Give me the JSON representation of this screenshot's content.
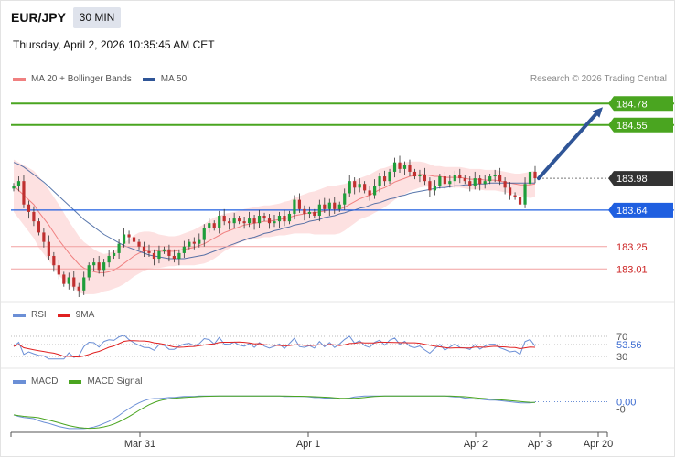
{
  "header": {
    "pair": "EUR/JPY",
    "timeframe": "30 MIN",
    "datetime": "Thursday, April 2, 2026 10:35:45 AM CET",
    "credit": "Research © 2026 Trading Central"
  },
  "legend": {
    "main": [
      {
        "label": "MA 20 + Bollinger Bands",
        "color": "#f08080"
      },
      {
        "label": "MA 50",
        "color": "#2f5597"
      }
    ],
    "rsi": [
      {
        "label": "RSI",
        "color": "#6b8fd6"
      },
      {
        "label": "9MA",
        "color": "#e02020"
      }
    ],
    "macd": [
      {
        "label": "MACD",
        "color": "#6b8fd6"
      },
      {
        "label": "MACD Signal",
        "color": "#4aa520"
      }
    ]
  },
  "colors": {
    "up": "#1e9e3a",
    "down": "#c03030",
    "target": "#4aa520",
    "pivot": "#1f5fe0",
    "support": "#e06060",
    "current": "#333333",
    "arrow": "#2f5597"
  },
  "chart_data": {
    "type": "candlestick",
    "x_ticks": [
      "Mar 31",
      "Apr 1",
      "Apr 2",
      "Apr 3",
      "Apr 20"
    ],
    "y_range": [
      182.7,
      184.9
    ],
    "levels": [
      {
        "label": "184.78",
        "value": 184.78,
        "kind": "target"
      },
      {
        "label": "184.55",
        "value": 184.55,
        "kind": "target"
      },
      {
        "label": "183.98",
        "value": 183.98,
        "kind": "current"
      },
      {
        "label": "183.64",
        "value": 183.64,
        "kind": "pivot"
      },
      {
        "label": "183.25",
        "value": 183.25,
        "kind": "support"
      },
      {
        "label": "183.01",
        "value": 183.01,
        "kind": "support"
      }
    ],
    "closes": [
      183.9,
      183.95,
      183.7,
      183.62,
      183.52,
      183.4,
      183.3,
      183.15,
      183.05,
      182.95,
      182.85,
      182.92,
      182.82,
      182.78,
      182.92,
      183.05,
      183.08,
      183.0,
      183.08,
      183.15,
      183.18,
      183.28,
      183.38,
      183.35,
      183.3,
      183.25,
      183.2,
      183.18,
      183.12,
      183.2,
      183.22,
      183.15,
      183.12,
      183.18,
      183.25,
      183.3,
      183.28,
      183.32,
      183.45,
      183.5,
      183.45,
      183.58,
      183.52,
      183.5,
      183.55,
      183.52,
      183.5,
      183.55,
      183.5,
      183.58,
      183.55,
      183.5,
      183.52,
      183.58,
      183.52,
      183.6,
      183.75,
      183.65,
      183.6,
      183.62,
      183.58,
      183.7,
      183.65,
      183.72,
      183.65,
      183.7,
      183.82,
      183.95,
      183.88,
      183.92,
      183.85,
      183.8,
      183.9,
      184.0,
      183.95,
      184.05,
      184.15,
      184.08,
      184.12,
      184.05,
      184.0,
      184.02,
      183.95,
      183.85,
      183.9,
      184.0,
      183.92,
      183.95,
      184.02,
      183.98,
      183.95,
      183.9,
      183.98,
      183.92,
      183.95,
      184.0,
      184.02,
      183.95,
      183.88,
      183.8,
      183.78,
      183.7,
      183.92,
      184.05,
      183.98
    ],
    "ma20": [
      183.9,
      183.85,
      183.8,
      183.75,
      183.7,
      183.62,
      183.55,
      183.48,
      183.4,
      183.32,
      183.25,
      183.18,
      183.12,
      183.06,
      183.02,
      183.0,
      182.98,
      182.97,
      182.97,
      182.98,
      183.0,
      183.03,
      183.07,
      183.11,
      183.15,
      183.18,
      183.2,
      183.21,
      183.21,
      183.2,
      183.2,
      183.2,
      183.2,
      183.21,
      183.22,
      183.23,
      183.24,
      183.26,
      183.28,
      183.31,
      183.34,
      183.37,
      183.4,
      183.42,
      183.44,
      183.46,
      183.48,
      183.49,
      183.5,
      183.51,
      183.52,
      183.52,
      183.53,
      183.54,
      183.55,
      183.56,
      183.58,
      183.59,
      183.6,
      183.61,
      183.61,
      183.62,
      183.63,
      183.64,
      183.64,
      183.65,
      183.67,
      183.7,
      183.73,
      183.76,
      183.78,
      183.8,
      183.83,
      183.86,
      183.88,
      183.91,
      183.94,
      183.96,
      183.98,
      184.0,
      184.01,
      184.02,
      184.02,
      184.01,
      184.0,
      184.0,
      183.99,
      183.99,
      183.99,
      183.99,
      183.98,
      183.97,
      183.97,
      183.97,
      183.96,
      183.96,
      183.96,
      183.95,
      183.94,
      183.93,
      183.92,
      183.91,
      183.91,
      183.91,
      183.92
    ],
    "ma50": [
      184.15,
      184.13,
      184.1,
      184.06,
      184.02,
      183.98,
      183.94,
      183.89,
      183.84,
      183.79,
      183.74,
      183.69,
      183.64,
      183.59,
      183.54,
      183.5,
      183.46,
      183.42,
      183.38,
      183.35,
      183.32,
      183.29,
      183.26,
      183.24,
      183.22,
      183.2,
      183.18,
      183.16,
      183.15,
      183.14,
      183.13,
      183.12,
      183.12,
      183.12,
      183.12,
      183.13,
      183.14,
      183.15,
      183.16,
      183.18,
      183.2,
      183.22,
      183.24,
      183.26,
      183.28,
      183.3,
      183.32,
      183.34,
      183.35,
      183.37,
      183.39,
      183.4,
      183.42,
      183.43,
      183.45,
      183.46,
      183.48,
      183.49,
      183.5,
      183.52,
      183.53,
      183.54,
      183.56,
      183.57,
      183.58,
      183.6,
      183.61,
      183.63,
      183.64,
      183.66,
      183.67,
      183.69,
      183.71,
      183.72,
      183.74,
      183.76,
      183.77,
      183.79,
      183.8,
      183.82,
      183.83,
      183.84,
      183.85,
      183.86,
      183.87,
      183.88,
      183.88,
      183.89,
      183.9,
      183.9,
      183.91,
      183.91,
      183.92,
      183.92,
      183.92,
      183.93,
      183.93,
      183.93,
      183.93,
      183.93,
      183.93,
      183.93,
      183.93,
      183.93,
      183.93
    ],
    "bb_width": [
      0.28,
      0.3,
      0.32,
      0.34,
      0.36,
      0.38,
      0.38,
      0.38,
      0.38,
      0.38,
      0.36,
      0.34,
      0.32,
      0.3,
      0.28,
      0.26,
      0.24,
      0.22,
      0.2,
      0.2,
      0.2,
      0.21,
      0.22,
      0.22,
      0.22,
      0.22,
      0.21,
      0.2,
      0.19,
      0.18,
      0.17,
      0.16,
      0.16,
      0.16,
      0.17,
      0.18,
      0.19,
      0.2,
      0.21,
      0.22,
      0.22,
      0.21,
      0.2,
      0.19,
      0.18,
      0.17,
      0.17,
      0.17,
      0.17,
      0.17,
      0.17,
      0.17,
      0.17,
      0.17,
      0.18,
      0.18,
      0.19,
      0.2,
      0.21,
      0.22,
      0.23,
      0.24,
      0.25,
      0.26,
      0.26,
      0.26,
      0.25,
      0.24,
      0.23,
      0.22,
      0.22,
      0.22,
      0.22,
      0.22,
      0.21,
      0.2,
      0.19,
      0.18,
      0.17,
      0.16,
      0.15,
      0.14,
      0.13,
      0.12,
      0.11,
      0.11,
      0.11,
      0.11,
      0.11,
      0.11,
      0.11,
      0.11,
      0.11,
      0.11,
      0.11,
      0.11,
      0.11,
      0.11,
      0.11,
      0.11,
      0.11,
      0.12,
      0.13,
      0.14,
      0.14
    ],
    "rsi": {
      "levels": [
        {
          "label": "70",
          "value": 70
        },
        {
          "label": "53.56",
          "value": 53.56
        },
        {
          "label": "30",
          "value": 30
        }
      ],
      "current": 53.56
    },
    "macd": {
      "levels": [
        {
          "label": "0.00",
          "value": 0.0
        },
        {
          "label": "-0",
          "value": -0.02
        }
      ],
      "current": 0.0
    }
  }
}
